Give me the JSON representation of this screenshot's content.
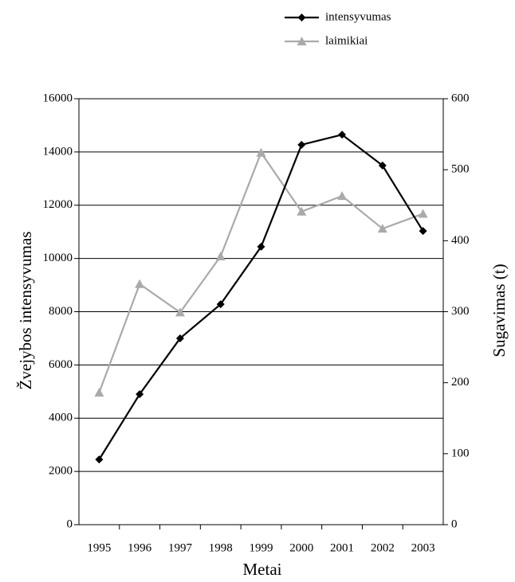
{
  "chart_data": {
    "type": "line",
    "xlabel": "Metai",
    "ylabel": "Žvejybos intensyvumas",
    "y2label": "Sugavimas (t)",
    "categories": [
      "1995",
      "1996",
      "1997",
      "1998",
      "1999",
      "2000",
      "2001",
      "2002",
      "2003"
    ],
    "series": [
      {
        "name": "intensyvumas",
        "color": "#000000",
        "marker": "diamond",
        "axis": "y",
        "values": [
          2450,
          4900,
          7000,
          8280,
          10440,
          14270,
          14650,
          13490,
          11030
        ]
      },
      {
        "name": "laimikiai",
        "color": "#aaaaaa",
        "marker": "triangle",
        "axis": "y2",
        "values": [
          186,
          339,
          299,
          378,
          524,
          441,
          463,
          417,
          438
        ]
      }
    ],
    "ylim": [
      0,
      16000
    ],
    "yticks": [
      0,
      2000,
      4000,
      6000,
      8000,
      10000,
      12000,
      14000,
      16000
    ],
    "y2lim": [
      0,
      600
    ],
    "y2ticks": [
      0,
      100,
      200,
      300,
      400,
      500,
      600
    ],
    "grid": true,
    "legend": "top"
  }
}
